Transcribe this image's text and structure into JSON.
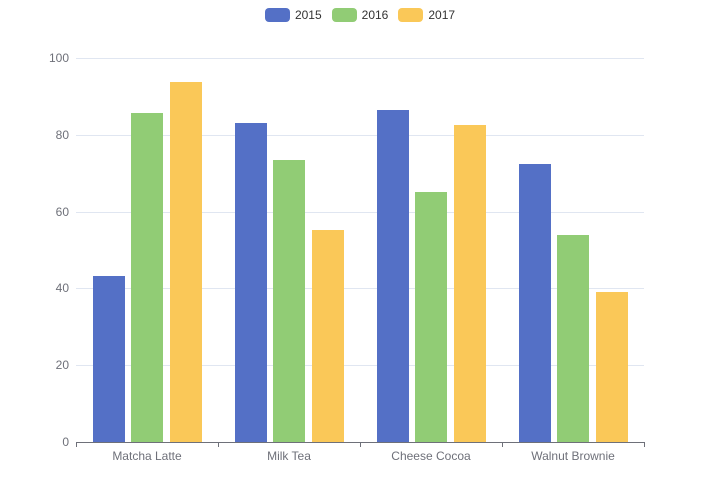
{
  "legend": [
    {
      "label": "2015",
      "color": "#5470c6"
    },
    {
      "label": "2016",
      "color": "#91cc75"
    },
    {
      "label": "2017",
      "color": "#fac858"
    }
  ],
  "y_ticks": [
    "0",
    "20",
    "40",
    "60",
    "80",
    "100"
  ],
  "x_labels": [
    "Matcha Latte",
    "Milk Tea",
    "Cheese Cocoa",
    "Walnut Brownie"
  ],
  "chart_data": {
    "type": "bar",
    "title": "",
    "xlabel": "",
    "ylabel": "",
    "categories": [
      "Matcha Latte",
      "Milk Tea",
      "Cheese Cocoa",
      "Walnut Brownie"
    ],
    "series": [
      {
        "name": "2015",
        "color": "#5470c6",
        "values": [
          43.3,
          83.1,
          86.4,
          72.4
        ]
      },
      {
        "name": "2016",
        "color": "#91cc75",
        "values": [
          85.8,
          73.4,
          65.2,
          53.9
        ]
      },
      {
        "name": "2017",
        "color": "#fac858",
        "values": [
          93.7,
          55.1,
          82.5,
          39.1
        ]
      }
    ],
    "ylim": [
      0,
      100
    ],
    "y_ticks": [
      0,
      20,
      40,
      60,
      80,
      100
    ],
    "grid": true,
    "legend_position": "top"
  }
}
